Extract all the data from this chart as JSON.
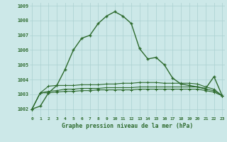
{
  "main_line": [
    1002.0,
    1002.2,
    1003.1,
    1003.6,
    1004.7,
    1006.0,
    1006.8,
    1007.0,
    1007.8,
    1008.3,
    1008.6,
    1008.3,
    1007.8,
    1006.1,
    1005.4,
    1005.5,
    1005.0,
    1004.1,
    1003.7,
    1003.6,
    1003.5,
    1003.4,
    1004.2,
    1002.9
  ],
  "flat_line1": [
    1002.0,
    1003.1,
    1003.55,
    1003.6,
    1003.6,
    1003.6,
    1003.65,
    1003.65,
    1003.65,
    1003.7,
    1003.7,
    1003.75,
    1003.75,
    1003.8,
    1003.8,
    1003.8,
    1003.75,
    1003.75,
    1003.75,
    1003.75,
    1003.7,
    1003.5,
    1003.35,
    1002.9
  ],
  "flat_line2": [
    1002.0,
    1003.1,
    1003.2,
    1003.25,
    1003.35,
    1003.35,
    1003.4,
    1003.4,
    1003.4,
    1003.45,
    1003.45,
    1003.45,
    1003.45,
    1003.5,
    1003.5,
    1003.5,
    1003.5,
    1003.5,
    1003.5,
    1003.5,
    1003.5,
    1003.35,
    1003.25,
    1002.9
  ],
  "flat_line3": [
    1002.0,
    1003.1,
    1003.1,
    1003.15,
    1003.2,
    1003.2,
    1003.25,
    1003.25,
    1003.3,
    1003.3,
    1003.3,
    1003.3,
    1003.3,
    1003.35,
    1003.35,
    1003.35,
    1003.35,
    1003.35,
    1003.35,
    1003.35,
    1003.35,
    1003.25,
    1003.15,
    1002.9
  ],
  "x": [
    0,
    1,
    2,
    3,
    4,
    5,
    6,
    7,
    8,
    9,
    10,
    11,
    12,
    13,
    14,
    15,
    16,
    17,
    18,
    19,
    20,
    21,
    22,
    23
  ],
  "ylim": [
    1001.5,
    1009.2
  ],
  "yticks": [
    1002,
    1003,
    1004,
    1005,
    1006,
    1007,
    1008,
    1009
  ],
  "xtick_labels": [
    "0",
    "1",
    "2",
    "3",
    "4",
    "5",
    "6",
    "7",
    "8",
    "9",
    "10",
    "11",
    "12",
    "13",
    "14",
    "15",
    "16",
    "17",
    "18",
    "19",
    "20",
    "21",
    "22",
    "23"
  ],
  "xlabel": "Graphe pression niveau de la mer (hPa)",
  "line_color": "#2d6a2d",
  "bg_color": "#cce8e8",
  "grid_color": "#aad0d0",
  "marker": "+"
}
